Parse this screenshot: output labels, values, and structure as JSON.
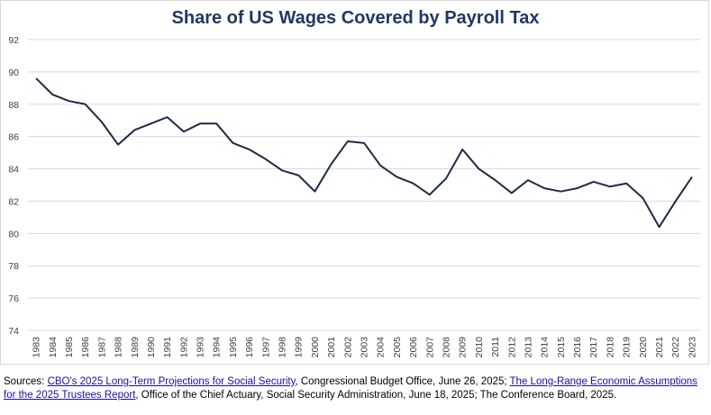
{
  "chart_data": {
    "type": "line",
    "title": "Share of US Wages Covered by Payroll Tax",
    "xlabel": "",
    "ylabel": "",
    "ylim": [
      74,
      92
    ],
    "yticks": [
      "74",
      "76",
      "78",
      "80",
      "82",
      "84",
      "86",
      "88",
      "90",
      "92"
    ],
    "grid": true,
    "line_color": "#1c2b47",
    "categories": [
      "1983",
      "1984",
      "1985",
      "1986",
      "1987",
      "1988",
      "1989",
      "1990",
      "1991",
      "1992",
      "1993",
      "1994",
      "1995",
      "1996",
      "1997",
      "1998",
      "1999",
      "2000",
      "2001",
      "2002",
      "2003",
      "2004",
      "2005",
      "2006",
      "2007",
      "2008",
      "2009",
      "2010",
      "2011",
      "2012",
      "2013",
      "2014",
      "2015",
      "2016",
      "2017",
      "2018",
      "2019",
      "2020",
      "2021",
      "2022",
      "2023"
    ],
    "values": [
      89.6,
      88.6,
      88.2,
      88.0,
      86.9,
      85.5,
      86.4,
      86.8,
      87.2,
      86.3,
      86.8,
      86.8,
      85.6,
      85.2,
      84.6,
      83.9,
      83.6,
      82.6,
      84.3,
      85.7,
      85.6,
      84.2,
      83.5,
      83.1,
      82.4,
      83.4,
      85.2,
      84.0,
      83.3,
      82.5,
      83.3,
      82.8,
      82.6,
      82.8,
      83.2,
      82.9,
      83.1,
      82.2,
      80.4,
      82.0,
      83.5
    ]
  },
  "sources": {
    "prefix": "Sources: ",
    "link1": "CBO's 2025 Long-Term Projections for Social Security",
    "text1": ", Congressional Budget Office, June 26, 2025; ",
    "link2": "The Long-Range Economic Assumptions for the 2025 Trustees Report",
    "text2": ", Office of the Chief Actuary, Social Security Administration, June 18, 2025; The Conference Board, 2025."
  }
}
